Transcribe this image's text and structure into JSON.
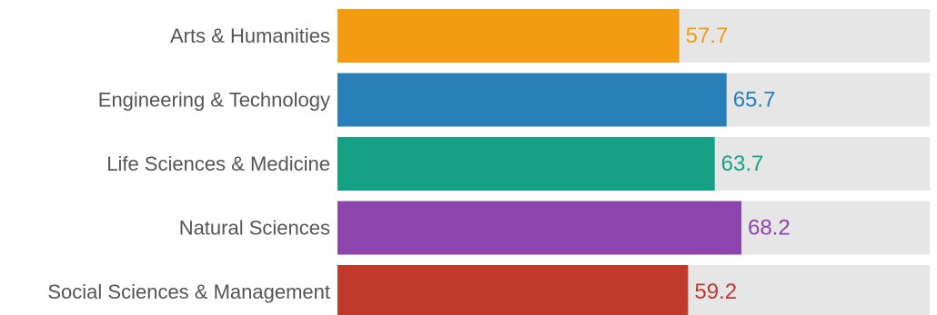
{
  "chart_data": {
    "type": "bar",
    "orientation": "horizontal",
    "categories": [
      "Arts & Humanities",
      "Engineering & Technology",
      "Life Sciences & Medicine",
      "Natural Sciences",
      "Social Sciences & Management"
    ],
    "values": [
      57.7,
      65.7,
      63.7,
      68.2,
      59.2
    ],
    "value_labels": [
      "57.7",
      "65.7",
      "63.7",
      "68.2",
      "59.2"
    ],
    "colors": [
      "#f39c12",
      "#2980b9",
      "#16a085",
      "#8e44ad",
      "#c0392b"
    ],
    "track_color": "#e6e6e6",
    "category_label_color": "#555555",
    "xlim": [
      0,
      100
    ],
    "title": "",
    "xlabel": "",
    "ylabel": "",
    "grid": false,
    "legend": "none"
  }
}
